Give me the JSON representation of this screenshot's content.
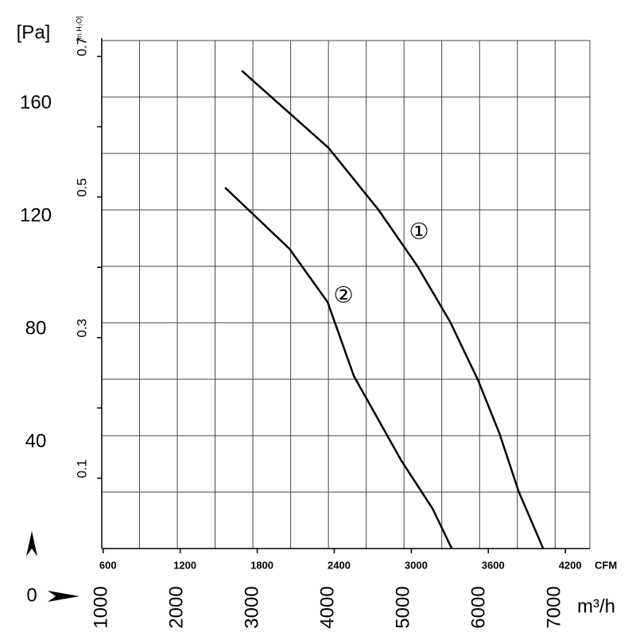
{
  "chart_data": {
    "type": "line",
    "y_unit_label": "[Pa]",
    "y2_unit_label": "[in.H₂O]",
    "x2_unit_label": "CFM",
    "x_unit_label": "m³/h",
    "origin_label": "0",
    "xlim": [
      1000,
      7460
    ],
    "xticks": [
      1000,
      2000,
      3000,
      4000,
      5000,
      6000,
      7000
    ],
    "xgrid": [
      1000,
      1500,
      2000,
      2500,
      3000,
      3500,
      4000,
      4500,
      5000,
      5500,
      6000,
      6500,
      7000
    ],
    "x2lim": [
      589,
      4391
    ],
    "x2ticks": [
      600,
      1200,
      1800,
      2400,
      3000,
      3600,
      4200
    ],
    "ylim": [
      0,
      180
    ],
    "yticks": [
      40,
      80,
      120,
      160
    ],
    "ygrid": [
      20,
      40,
      60,
      80,
      100,
      120,
      140,
      160,
      180
    ],
    "y2lim": [
      0,
      0.7226
    ],
    "y2ticks": [
      0.1,
      0.3,
      0.5,
      0.7
    ],
    "grid": true,
    "series": [
      {
        "name": "①",
        "color": "#000000",
        "x": [
          2853,
          4000,
          4663,
          5179,
          5611,
          5979,
          6263,
          6516,
          6842
        ],
        "values": [
          169.3,
          142,
          120,
          100,
          80.3,
          59.7,
          40.8,
          20.3,
          0
        ]
      },
      {
        "name": "②",
        "color": "#000000",
        "x": [
          2632,
          3484,
          3989,
          4337,
          4968,
          5379,
          5632
        ],
        "values": [
          127.9,
          106.2,
          87.3,
          61.1,
          31,
          14.1,
          0
        ]
      }
    ]
  }
}
